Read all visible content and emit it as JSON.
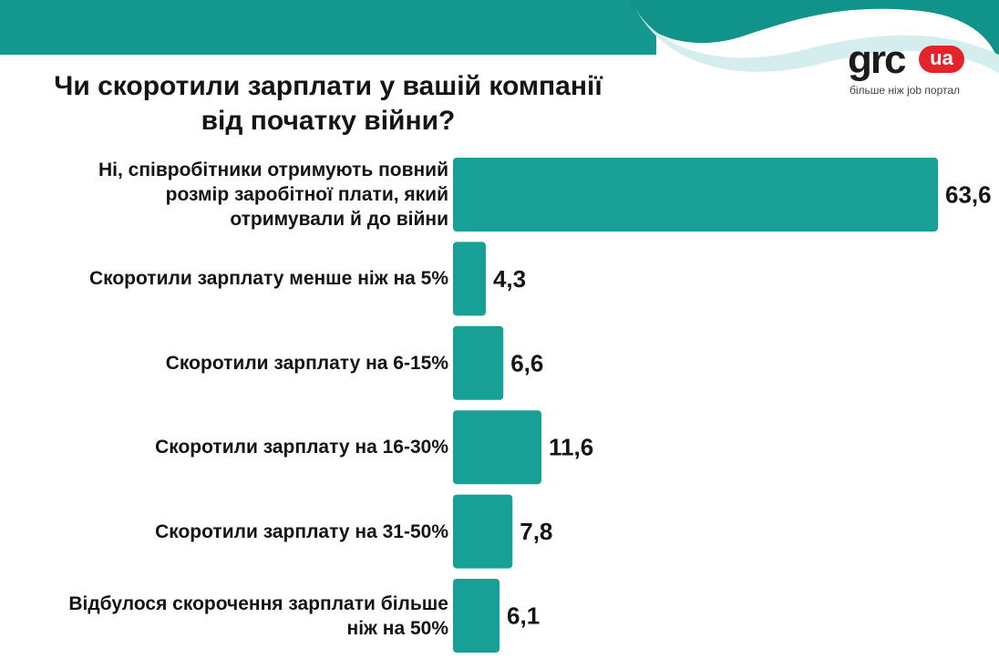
{
  "title_lines": [
    "Чи скоротили зарплати у вашій компанії",
    "від початку війни?"
  ],
  "logo": {
    "wordmark": "grc",
    "badge": "ua",
    "tagline": "більше ніж job портал",
    "badge_color": "#e4242a"
  },
  "colors": {
    "bar": "#17a096",
    "header_teal": "#14988f",
    "header_light": "#d3eeec",
    "text": "#141414"
  },
  "chart_data": {
    "type": "bar",
    "orientation": "horizontal",
    "title": "Чи скоротили зарплати у вашій компанії від початку війни?",
    "categories": [
      [
        "Ні, співробітники отримують повний",
        "розмір заробітної плати, який",
        "отримували й до війни"
      ],
      [
        "Скоротили зарплату менше ніж на 5%"
      ],
      [
        "Скоротили зарплату на 6-15%"
      ],
      [
        "Скоротили зарплату на 16-30%"
      ],
      [
        "Скоротили зарплату на 31-50%"
      ],
      [
        "Відбулося скорочення зарплати більше",
        "ніж на 50%"
      ]
    ],
    "values": [
      63.6,
      4.3,
      6.6,
      11.6,
      7.8,
      6.1
    ],
    "value_labels": [
      "63,6",
      "4,3",
      "6,6",
      "11,6",
      "7,8",
      "6,1"
    ],
    "xlim": [
      0,
      63.6
    ],
    "grid": false,
    "legend": "none"
  }
}
